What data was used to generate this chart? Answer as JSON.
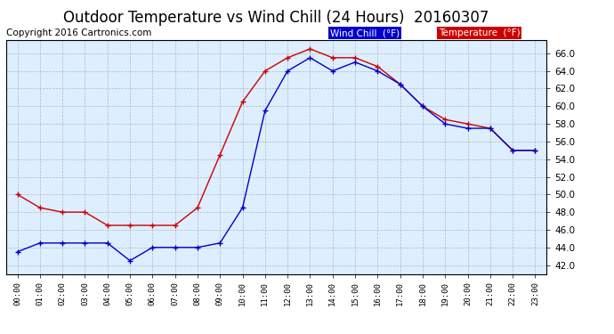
{
  "title": "Outdoor Temperature vs Wind Chill (24 Hours)  20160307",
  "copyright": "Copyright 2016 Cartronics.com",
  "legend_wind_chill": "Wind Chill  (°F)",
  "legend_temperature": "Temperature  (°F)",
  "hours": [
    "00:00",
    "01:00",
    "02:00",
    "03:00",
    "04:00",
    "05:00",
    "06:00",
    "07:00",
    "08:00",
    "09:00",
    "10:00",
    "11:00",
    "12:00",
    "13:00",
    "14:00",
    "15:00",
    "16:00",
    "17:00",
    "18:00",
    "19:00",
    "20:00",
    "21:00",
    "22:00",
    "23:00"
  ],
  "temperature": [
    50.0,
    48.5,
    48.0,
    48.0,
    46.5,
    46.5,
    46.5,
    46.5,
    48.5,
    54.5,
    60.5,
    64.0,
    65.5,
    66.5,
    65.5,
    65.5,
    64.5,
    62.5,
    60.0,
    58.5,
    58.0,
    57.5,
    55.0,
    55.0
  ],
  "wind_chill": [
    43.5,
    44.5,
    44.5,
    44.5,
    44.5,
    42.5,
    44.0,
    44.0,
    44.0,
    44.5,
    48.5,
    59.5,
    64.0,
    65.5,
    64.0,
    65.0,
    64.0,
    62.5,
    60.0,
    58.0,
    57.5,
    57.5,
    55.0,
    55.0
  ],
  "temp_color": "#cc0000",
  "wind_color": "#0000cc",
  "ylim_min": 41.0,
  "ylim_max": 67.5,
  "yticks": [
    42.0,
    44.0,
    46.0,
    48.0,
    50.0,
    52.0,
    54.0,
    56.0,
    58.0,
    60.0,
    62.0,
    64.0,
    66.0
  ],
  "background_color": "#ffffff",
  "plot_bg_color": "#ddeeff",
  "grid_color": "#aaaaaa",
  "title_fontsize": 12,
  "copyright_fontsize": 7.5
}
